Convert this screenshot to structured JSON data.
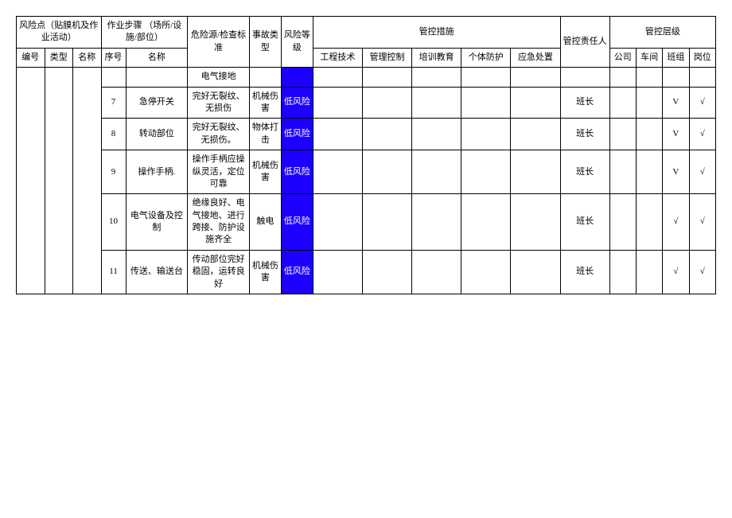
{
  "headers": {
    "riskPoint": "风险点（贴膜机及作业活动）",
    "workStep": "作业步骤\n（场所/设施/部位）",
    "hazard": "危险源/检查标准",
    "accidentType": "事故类型",
    "riskLevel": "风险等级",
    "controlMeasures": "管控措施",
    "controlPerson": "管控责任人",
    "controlLayer": "管控层级",
    "id": "编号",
    "type": "类型",
    "name": "名称",
    "seq": "序号",
    "stepName": "名称",
    "engTech": "工程技术",
    "mgmtControl": "管理控制",
    "training": "培训教育",
    "ppe": "个体防护",
    "emergency": "应急处置",
    "company": "公司",
    "workshop": "车间",
    "team": "班组",
    "post": "岗位"
  },
  "rows": [
    {
      "seq": "",
      "stepName": "",
      "hazard": "电气接地",
      "accidentType": "",
      "riskLevel": "",
      "riskCellBlue": true,
      "controlPerson": "",
      "team": "",
      "post": ""
    },
    {
      "seq": "7",
      "stepName": "急停开关",
      "hazard": "完好无裂纹、无损伤",
      "accidentType": "机械伤害",
      "riskLevel": "低风险",
      "riskCellBlue": true,
      "controlPerson": "班长",
      "team": "V",
      "post": "√"
    },
    {
      "seq": "8",
      "stepName": "转动部位",
      "hazard": "完好无裂纹、无损伤。",
      "accidentType": "物体打击",
      "riskLevel": "低风险",
      "riskCellBlue": true,
      "controlPerson": "班长",
      "team": "V",
      "post": "√"
    },
    {
      "seq": "9",
      "stepName": "操作手柄.",
      "hazard": "操作手柄应操纵灵活，定位可靠",
      "accidentType": "机械伤害",
      "riskLevel": "低风险",
      "riskCellBlue": true,
      "controlPerson": "班长",
      "team": "V",
      "post": "√"
    },
    {
      "seq": "10",
      "stepName": "电气设备及控制",
      "hazard": "绝缘良好、电气接地、进行跨接、防护设施齐全",
      "accidentType": "触电",
      "riskLevel": "低风险",
      "riskCellBlue": true,
      "controlPerson": "班长",
      "team": "√",
      "post": "√"
    },
    {
      "seq": "11",
      "stepName": "传送、输送台",
      "hazard": "传动部位完好稳固，运转良好",
      "accidentType": "机械伤害",
      "riskLevel": "低风险",
      "riskCellBlue": true,
      "controlPerson": "班长",
      "team": "√",
      "post": "√"
    }
  ],
  "colWidths": {
    "id": 32,
    "type": 32,
    "name": 32,
    "seq": 28,
    "stepName": 70,
    "hazard": 70,
    "accident": 36,
    "riskLevel": 36,
    "eng": 56,
    "mgmt": 56,
    "train": 56,
    "ppe": 56,
    "emerg": 56,
    "person": 56,
    "company": 30,
    "workshop": 30,
    "team": 30,
    "post": 30
  },
  "colors": {
    "riskBlue": "#1C00FF",
    "riskText": "#ffffff",
    "border": "#000000",
    "bg": "#ffffff"
  }
}
